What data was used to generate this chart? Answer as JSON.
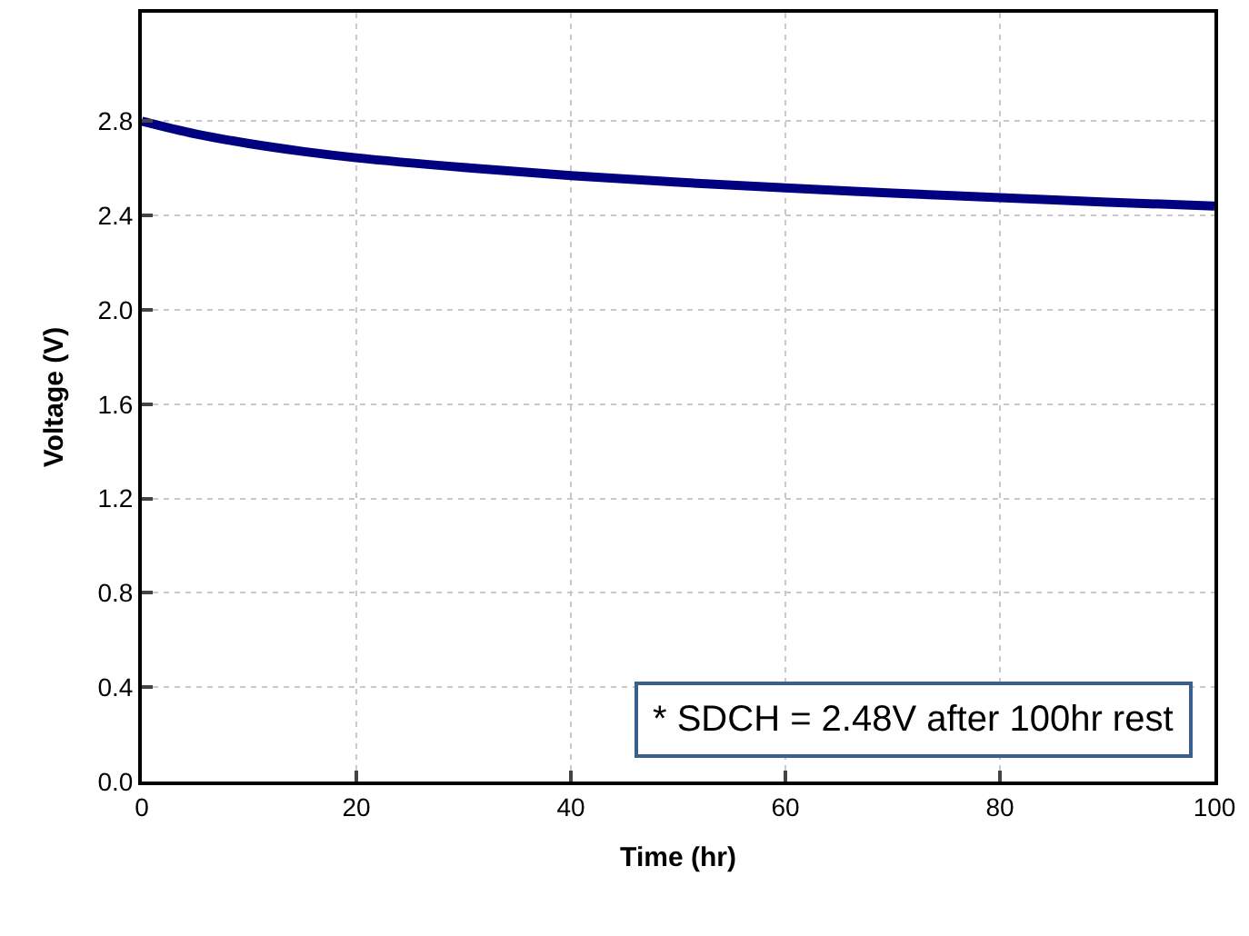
{
  "chart_data": {
    "type": "line",
    "xlabel": "Time (hr)",
    "ylabel": "Voltage (V)",
    "x": [
      0,
      5,
      10,
      15,
      20,
      30,
      40,
      50,
      60,
      70,
      80,
      90,
      100
    ],
    "series": [
      {
        "color": "#000080",
        "values": [
          2.8,
          2.746,
          2.705,
          2.672,
          2.645,
          2.604,
          2.569,
          2.541,
          2.517,
          2.495,
          2.476,
          2.457,
          2.44
        ]
      }
    ],
    "xlim": [
      0,
      100
    ],
    "xticks": [
      0,
      20,
      40,
      60,
      80,
      100
    ],
    "ylim": [
      0,
      3.26
    ],
    "yticks": [
      {
        "value": 0,
        "label": "0.0"
      },
      0.4,
      0.8,
      1.2,
      1.6,
      {
        "value": 2,
        "label": "2.0"
      },
      2.4,
      2.8
    ],
    "grid": true,
    "marker": "none",
    "line_style": "solid",
    "annotations": [
      "* SDCH = 2.48V after 100hr rest"
    ]
  }
}
